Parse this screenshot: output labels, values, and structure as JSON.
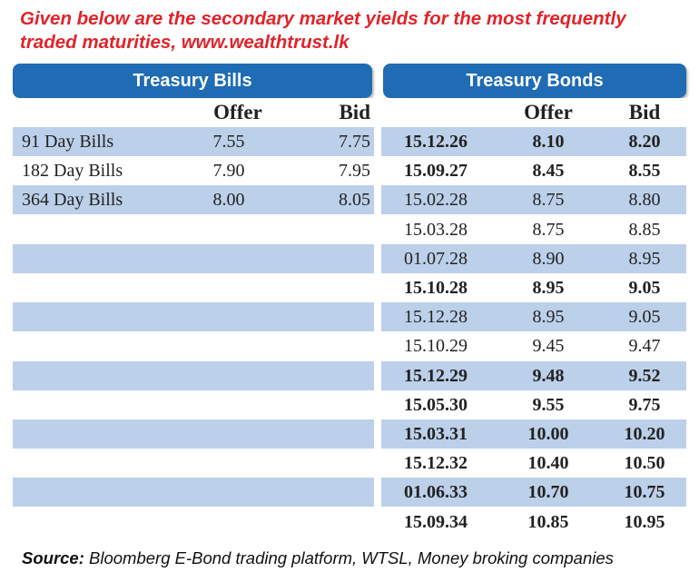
{
  "caption": {
    "line1": "Given below are the secondary market yields for the most frequently",
    "line2": "traded maturities, www.wealthtrust.lk"
  },
  "headers": {
    "bills": "Treasury Bills",
    "bonds": "Treasury Bonds",
    "offer": "Offer",
    "bid": "Bid"
  },
  "bills": [
    {
      "name": "91 Day Bills",
      "offer": "7.55",
      "bid": "7.75"
    },
    {
      "name": "182 Day Bills",
      "offer": "7.90",
      "bid": "7.95"
    },
    {
      "name": "364 Day Bills",
      "offer": "8.00",
      "bid": "8.05"
    }
  ],
  "bonds": [
    {
      "maturity": "15.12.26",
      "offer": "8.10",
      "bid": "8.20",
      "bold": true
    },
    {
      "maturity": "15.09.27",
      "offer": "8.45",
      "bid": "8.55",
      "bold": true
    },
    {
      "maturity": "15.02.28",
      "offer": "8.75",
      "bid": "8.80",
      "bold": false
    },
    {
      "maturity": "15.03.28",
      "offer": "8.75",
      "bid": "8.85",
      "bold": false
    },
    {
      "maturity": "01.07.28",
      "offer": "8.90",
      "bid": "8.95",
      "bold": false
    },
    {
      "maturity": "15.10.28",
      "offer": "8.95",
      "bid": "9.05",
      "bold": true
    },
    {
      "maturity": "15.12.28",
      "offer": "8.95",
      "bid": "9.05",
      "bold": false
    },
    {
      "maturity": "15.10.29",
      "offer": "9.45",
      "bid": "9.47",
      "bold": false
    },
    {
      "maturity": "15.12.29",
      "offer": "9.48",
      "bid": "9.52",
      "bold": true
    },
    {
      "maturity": "15.05.30",
      "offer": "9.55",
      "bid": "9.75",
      "bold": true
    },
    {
      "maturity": "15.03.31",
      "offer": "10.00",
      "bid": "10.20",
      "bold": true
    },
    {
      "maturity": "15.12.32",
      "offer": "10.40",
      "bid": "10.50",
      "bold": true
    },
    {
      "maturity": "01.06.33",
      "offer": "10.70",
      "bid": "10.75",
      "bold": true
    },
    {
      "maturity": "15.09.34",
      "offer": "10.85",
      "bid": "10.95",
      "bold": true
    }
  ],
  "source": {
    "label": "Source:",
    "text": " Bloomberg E-Bond trading platform, WTSL, Money broking companies"
  },
  "colors": {
    "caption_red": "#e1232a",
    "header_blue": "#1f6cb4",
    "row_shade": "#bcd0ea"
  }
}
